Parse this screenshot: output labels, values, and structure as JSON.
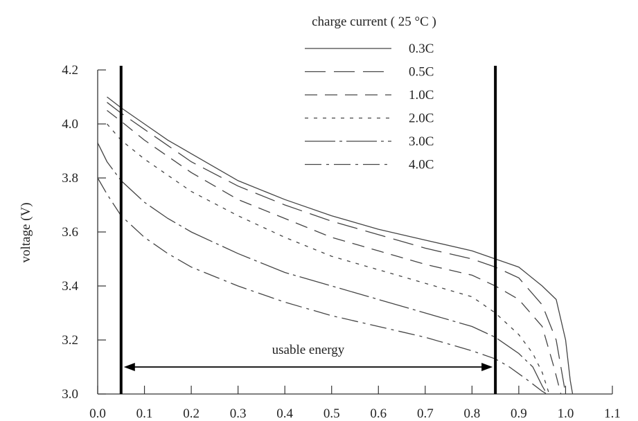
{
  "chart_data": {
    "type": "line",
    "title": "",
    "xlabel": "",
    "ylabel": "voltage (V)",
    "xlim": [
      0.0,
      1.1
    ],
    "ylim": [
      3.0,
      4.2
    ],
    "x_ticks": [
      "0.0",
      "0.1",
      "0.2",
      "0.3",
      "0.4",
      "0.5",
      "0.6",
      "0.7",
      "0.8",
      "0.9",
      "1.0",
      "1.1"
    ],
    "y_ticks": [
      "3.0",
      "3.2",
      "3.4",
      "3.6",
      "3.8",
      "4.0",
      "4.2"
    ],
    "grid": false,
    "legend": {
      "title": "charge current ( 25 °C )",
      "placement": "top-right"
    },
    "series": [
      {
        "name": "0.3C",
        "dash": "solid",
        "points": [
          [
            0.02,
            4.1
          ],
          [
            0.05,
            4.06
          ],
          [
            0.1,
            4.0
          ],
          [
            0.15,
            3.94
          ],
          [
            0.2,
            3.89
          ],
          [
            0.3,
            3.79
          ],
          [
            0.4,
            3.72
          ],
          [
            0.5,
            3.66
          ],
          [
            0.6,
            3.61
          ],
          [
            0.7,
            3.57
          ],
          [
            0.8,
            3.53
          ],
          [
            0.85,
            3.5
          ],
          [
            0.9,
            3.47
          ],
          [
            0.95,
            3.4
          ],
          [
            0.98,
            3.35
          ],
          [
            1.0,
            3.2
          ],
          [
            1.01,
            3.05
          ],
          [
            1.015,
            3.0
          ]
        ]
      },
      {
        "name": "0.5C",
        "dash": "long-dash",
        "points": [
          [
            0.02,
            4.08
          ],
          [
            0.05,
            4.04
          ],
          [
            0.1,
            3.98
          ],
          [
            0.15,
            3.92
          ],
          [
            0.2,
            3.86
          ],
          [
            0.3,
            3.77
          ],
          [
            0.4,
            3.7
          ],
          [
            0.5,
            3.64
          ],
          [
            0.6,
            3.59
          ],
          [
            0.7,
            3.54
          ],
          [
            0.8,
            3.5
          ],
          [
            0.85,
            3.47
          ],
          [
            0.9,
            3.43
          ],
          [
            0.95,
            3.33
          ],
          [
            0.98,
            3.2
          ],
          [
            0.995,
            3.05
          ],
          [
            1.0,
            3.0
          ]
        ]
      },
      {
        "name": "1.0C",
        "dash": "dash",
        "points": [
          [
            0.02,
            4.05
          ],
          [
            0.05,
            4.01
          ],
          [
            0.1,
            3.94
          ],
          [
            0.15,
            3.88
          ],
          [
            0.2,
            3.82
          ],
          [
            0.3,
            3.72
          ],
          [
            0.4,
            3.65
          ],
          [
            0.5,
            3.58
          ],
          [
            0.6,
            3.53
          ],
          [
            0.7,
            3.48
          ],
          [
            0.8,
            3.44
          ],
          [
            0.85,
            3.4
          ],
          [
            0.9,
            3.35
          ],
          [
            0.95,
            3.25
          ],
          [
            0.975,
            3.1
          ],
          [
            0.99,
            3.0
          ]
        ]
      },
      {
        "name": "2.0C",
        "dash": "dot",
        "points": [
          [
            0.02,
            4.0
          ],
          [
            0.05,
            3.94
          ],
          [
            0.1,
            3.87
          ],
          [
            0.15,
            3.81
          ],
          [
            0.2,
            3.75
          ],
          [
            0.3,
            3.66
          ],
          [
            0.4,
            3.58
          ],
          [
            0.5,
            3.51
          ],
          [
            0.6,
            3.46
          ],
          [
            0.7,
            3.41
          ],
          [
            0.8,
            3.36
          ],
          [
            0.85,
            3.3
          ],
          [
            0.9,
            3.22
          ],
          [
            0.93,
            3.15
          ],
          [
            0.95,
            3.08
          ],
          [
            0.965,
            3.0
          ]
        ]
      },
      {
        "name": "3.0C",
        "dash": "dash-dot-long",
        "points": [
          [
            0.0,
            3.93
          ],
          [
            0.02,
            3.86
          ],
          [
            0.05,
            3.79
          ],
          [
            0.1,
            3.71
          ],
          [
            0.15,
            3.65
          ],
          [
            0.2,
            3.6
          ],
          [
            0.3,
            3.52
          ],
          [
            0.4,
            3.45
          ],
          [
            0.5,
            3.4
          ],
          [
            0.6,
            3.35
          ],
          [
            0.7,
            3.3
          ],
          [
            0.8,
            3.25
          ],
          [
            0.85,
            3.21
          ],
          [
            0.9,
            3.15
          ],
          [
            0.93,
            3.1
          ],
          [
            0.95,
            3.03
          ],
          [
            0.96,
            3.0
          ]
        ]
      },
      {
        "name": "4.0C",
        "dash": "dash-dot",
        "points": [
          [
            0.0,
            3.8
          ],
          [
            0.02,
            3.74
          ],
          [
            0.05,
            3.66
          ],
          [
            0.1,
            3.58
          ],
          [
            0.15,
            3.52
          ],
          [
            0.2,
            3.47
          ],
          [
            0.3,
            3.4
          ],
          [
            0.4,
            3.34
          ],
          [
            0.5,
            3.29
          ],
          [
            0.6,
            3.25
          ],
          [
            0.7,
            3.21
          ],
          [
            0.8,
            3.16
          ],
          [
            0.85,
            3.13
          ],
          [
            0.88,
            3.1
          ],
          [
            0.92,
            3.05
          ],
          [
            0.95,
            3.01
          ],
          [
            0.96,
            3.0
          ]
        ]
      }
    ],
    "markers": [
      {
        "name": "left-bound",
        "x": 0.05,
        "y_top": 4.2
      },
      {
        "name": "right-bound",
        "x": 0.85,
        "y_top": 4.2
      }
    ],
    "annotations": [
      {
        "text": "usable energy",
        "x_from": 0.05,
        "x_to": 0.85,
        "y": 3.1
      }
    ]
  }
}
